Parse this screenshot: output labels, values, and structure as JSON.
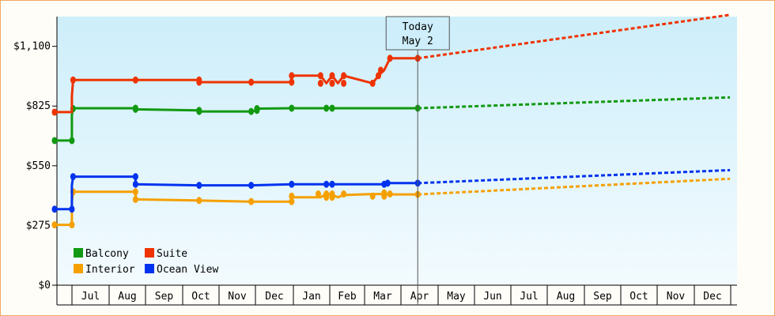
{
  "chart_data": {
    "type": "line",
    "title": "",
    "xlabel": "",
    "ylabel": "",
    "ylim": [
      0,
      1237
    ],
    "y_ticks": [
      {
        "value": 0,
        "label": "$0"
      },
      {
        "value": 275,
        "label": "$275"
      },
      {
        "value": 550,
        "label": "$550"
      },
      {
        "value": 825,
        "label": "$825"
      },
      {
        "value": 1100,
        "label": "$1,100"
      }
    ],
    "months": [
      "Jul",
      "Aug",
      "Sep",
      "Oct",
      "Nov",
      "Dec",
      "Jan",
      "Feb",
      "Mar",
      "Apr",
      "May",
      "Jun",
      "Jul",
      "Aug",
      "Sep",
      "Oct",
      "Nov",
      "Dec"
    ],
    "today": {
      "line1": "Today",
      "line2": "May 2",
      "day": 314
    },
    "x_unit": "days since Jun 23",
    "grid": false,
    "legend": {
      "placement": "bottom-left"
    },
    "forecast_end_day": 584,
    "series": [
      {
        "name": "Balcony",
        "color": "#119911",
        "points": [
          [
            0,
            666
          ],
          [
            15,
            666
          ],
          [
            15,
            785
          ],
          [
            16,
            813
          ],
          [
            16,
            815
          ],
          [
            70,
            815
          ],
          [
            70,
            810
          ],
          [
            125,
            805
          ],
          [
            125,
            800
          ],
          [
            170,
            800
          ],
          [
            175,
            805
          ],
          [
            175,
            813
          ],
          [
            205,
            815
          ],
          [
            235,
            815
          ],
          [
            240,
            815
          ],
          [
            288,
            815
          ],
          [
            314,
            815
          ]
        ],
        "markers": [
          [
            0,
            666
          ],
          [
            15,
            666
          ],
          [
            16,
            813
          ],
          [
            70,
            815
          ],
          [
            70,
            810
          ],
          [
            125,
            805
          ],
          [
            125,
            800
          ],
          [
            170,
            800
          ],
          [
            175,
            805
          ],
          [
            175,
            813
          ],
          [
            205,
            815
          ],
          [
            235,
            815
          ],
          [
            240,
            815
          ],
          [
            314,
            815
          ]
        ],
        "forecast_end": 865
      },
      {
        "name": "Suite",
        "color": "#ee3300",
        "points": [
          [
            0,
            797
          ],
          [
            15,
            797
          ],
          [
            15,
            870
          ],
          [
            16,
            945
          ],
          [
            70,
            945
          ],
          [
            125,
            945
          ],
          [
            125,
            935
          ],
          [
            170,
            935
          ],
          [
            205,
            935
          ],
          [
            205,
            965
          ],
          [
            230,
            965
          ],
          [
            235,
            930
          ],
          [
            240,
            965
          ],
          [
            245,
            930
          ],
          [
            250,
            965
          ],
          [
            275,
            930
          ],
          [
            280,
            965
          ],
          [
            285,
            990
          ],
          [
            290,
            1045
          ],
          [
            314,
            1045
          ]
        ],
        "markers": [
          [
            0,
            797
          ],
          [
            16,
            945
          ],
          [
            70,
            945
          ],
          [
            125,
            945
          ],
          [
            125,
            935
          ],
          [
            170,
            935
          ],
          [
            205,
            935
          ],
          [
            205,
            965
          ],
          [
            230,
            965
          ],
          [
            230,
            930
          ],
          [
            240,
            965
          ],
          [
            240,
            930
          ],
          [
            250,
            965
          ],
          [
            250,
            930
          ],
          [
            275,
            930
          ],
          [
            280,
            965
          ],
          [
            282,
            990
          ],
          [
            290,
            1045
          ],
          [
            314,
            1045
          ]
        ],
        "forecast_end": 1245
      },
      {
        "name": "Interior",
        "color": "#f5a000",
        "points": [
          [
            0,
            278
          ],
          [
            15,
            278
          ],
          [
            15,
            385
          ],
          [
            16,
            430
          ],
          [
            70,
            430
          ],
          [
            70,
            395
          ],
          [
            125,
            390
          ],
          [
            170,
            385
          ],
          [
            205,
            385
          ],
          [
            205,
            405
          ],
          [
            230,
            405
          ],
          [
            235,
            420
          ],
          [
            240,
            415
          ],
          [
            245,
            405
          ],
          [
            250,
            415
          ],
          [
            275,
            420
          ],
          [
            285,
            420
          ],
          [
            290,
            418
          ],
          [
            314,
            418
          ]
        ],
        "markers": [
          [
            0,
            278
          ],
          [
            15,
            278
          ],
          [
            16,
            430
          ],
          [
            70,
            430
          ],
          [
            70,
            395
          ],
          [
            125,
            390
          ],
          [
            170,
            385
          ],
          [
            205,
            385
          ],
          [
            205,
            410
          ],
          [
            228,
            420
          ],
          [
            235,
            420
          ],
          [
            235,
            405
          ],
          [
            240,
            420
          ],
          [
            240,
            405
          ],
          [
            250,
            420
          ],
          [
            275,
            410
          ],
          [
            285,
            410
          ],
          [
            285,
            425
          ],
          [
            290,
            420
          ],
          [
            314,
            418
          ]
        ],
        "forecast_end": 490
      },
      {
        "name": "Ocean View",
        "color": "#0033ee",
        "points": [
          [
            0,
            350
          ],
          [
            15,
            350
          ],
          [
            15,
            460
          ],
          [
            16,
            500
          ],
          [
            70,
            500
          ],
          [
            70,
            465
          ],
          [
            125,
            460
          ],
          [
            170,
            460
          ],
          [
            205,
            465
          ],
          [
            235,
            465
          ],
          [
            240,
            465
          ],
          [
            285,
            465
          ],
          [
            288,
            470
          ],
          [
            314,
            470
          ]
        ],
        "markers": [
          [
            0,
            350
          ],
          [
            15,
            350
          ],
          [
            16,
            500
          ],
          [
            70,
            500
          ],
          [
            70,
            465
          ],
          [
            125,
            460
          ],
          [
            170,
            460
          ],
          [
            205,
            465
          ],
          [
            235,
            465
          ],
          [
            240,
            465
          ],
          [
            285,
            465
          ],
          [
            288,
            470
          ],
          [
            314,
            470
          ]
        ],
        "forecast_end": 530
      }
    ]
  }
}
